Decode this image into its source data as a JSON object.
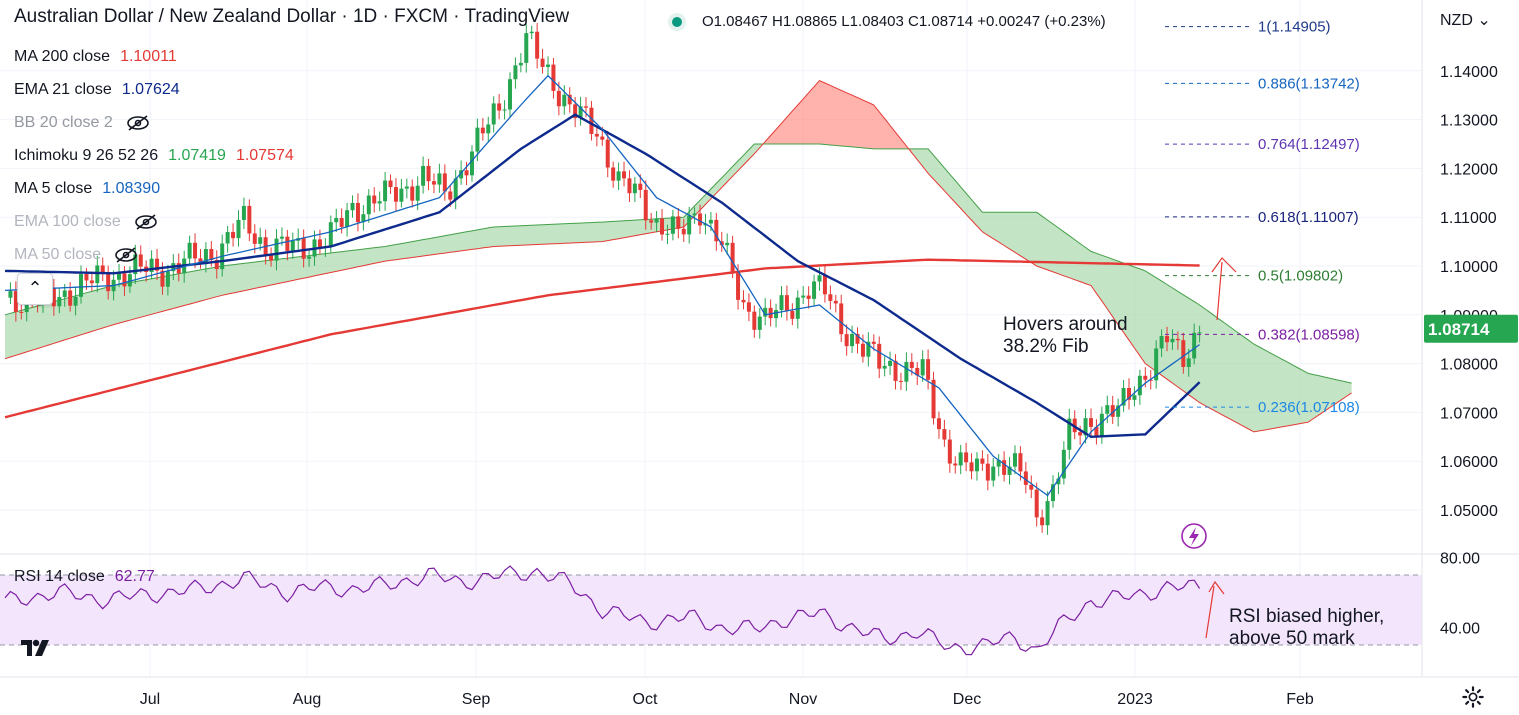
{
  "header": {
    "title": "Australian Dollar / New Zealand Dollar · 1D · FXCM · TradingView",
    "ohlc": "O1.08467  H1.08865  L1.08403  C1.08714  +0.00247  (+0.23%)",
    "currency": "NZD"
  },
  "indicators": {
    "ma200": {
      "label": "MA 200 close",
      "value": "1.10011",
      "color": "#e53935"
    },
    "ema21": {
      "label": "EMA 21 close",
      "value": "1.07624",
      "color": "#0d2a8c"
    },
    "bb": {
      "label": "BB 20 close 2"
    },
    "ichimoku": {
      "label": "Ichimoku 9 26 52 26",
      "value1": "1.07419",
      "value2": "1.07574"
    },
    "ma5": {
      "label": "MA 5 close",
      "value": "1.08390",
      "color": "#1565c0"
    },
    "ema100": {
      "label": "EMA 100 close"
    },
    "ma50": {
      "label": "MA 50 close"
    },
    "rsi": {
      "label": "RSI 14 close",
      "value": "62.77",
      "color": "#7b1fa2"
    }
  },
  "colors": {
    "up": "#26a650",
    "down": "#e53935",
    "ma200": "#e53935",
    "ema21": "#0d2a8c",
    "ma5": "#1565c0",
    "cloud_bull": "#a5d6a7",
    "cloud_bear": "#ff8a80",
    "rsi": "#7b1fa2",
    "rsi_band": "#f3e5fc"
  },
  "annotations": {
    "fib_note": "Hovers around\n38.2% Fib",
    "rsi_note": "RSI biased higher,\nabove 50 mark"
  },
  "chart_data": {
    "type": "candlestick",
    "title": "Australian Dollar / New Zealand Dollar · 1D · FXCM · TradingView",
    "price_axis": {
      "ticks": [
        1.05,
        1.06,
        1.07,
        1.08,
        1.09,
        1.1,
        1.11,
        1.12,
        1.13,
        1.14
      ],
      "last_price": "1.08714"
    },
    "rsi_axis": {
      "ticks": [
        "80.00",
        "40.00"
      ],
      "band": [
        30,
        70
      ]
    },
    "x_axis": {
      "ticks": [
        "Jul",
        "Aug",
        "Sep",
        "Oct",
        "Nov",
        "Dec",
        "2023",
        "Feb"
      ]
    },
    "fib_levels": [
      {
        "label": "1(1.14905)",
        "value": 1.14905,
        "color": "#1e3a8a"
      },
      {
        "label": "0.886(1.13742)",
        "value": 1.13742,
        "color": "#1565c0"
      },
      {
        "label": "0.764(1.12497)",
        "value": 1.12497,
        "color": "#5e35b1"
      },
      {
        "label": "0.618(1.11007)",
        "value": 1.11007,
        "color": "#1a237e"
      },
      {
        "label": "0.5(1.09802)",
        "value": 1.09802,
        "color": "#2e7d32"
      },
      {
        "label": "0.382(1.08598)",
        "value": 1.08598,
        "color": "#7b1fa2"
      },
      {
        "label": "0.236(1.07108)",
        "value": 1.07108,
        "color": "#1e88e5"
      }
    ],
    "close_anchors": [
      [
        0,
        1.0935
      ],
      [
        8,
        1.093
      ],
      [
        14,
        1.096
      ],
      [
        18,
        1.0975
      ],
      [
        24,
        1.099
      ],
      [
        30,
        1.0995
      ],
      [
        34,
        1.101
      ],
      [
        39,
        1.103
      ],
      [
        44,
        1.109
      ],
      [
        48,
        1.104
      ],
      [
        54,
        1.1035
      ],
      [
        60,
        1.106
      ],
      [
        64,
        1.112
      ],
      [
        70,
        1.114
      ],
      [
        77,
        1.118
      ],
      [
        81,
        1.115
      ],
      [
        86,
        1.123
      ],
      [
        91,
        1.133
      ],
      [
        96,
        1.146
      ],
      [
        100,
        1.14
      ],
      [
        104,
        1.132
      ],
      [
        109,
        1.128
      ],
      [
        113,
        1.117
      ],
      [
        117,
        1.114
      ],
      [
        120,
        1.109
      ],
      [
        124,
        1.106
      ],
      [
        128,
        1.112
      ],
      [
        132,
        1.104
      ],
      [
        136,
        1.092
      ],
      [
        140,
        1.089
      ],
      [
        145,
        1.092
      ],
      [
        148,
        1.096
      ],
      [
        151,
        1.0945
      ],
      [
        154,
        1.088
      ],
      [
        158,
        1.083
      ],
      [
        161,
        1.08
      ],
      [
        165,
        1.079
      ],
      [
        169,
        1.078
      ],
      [
        173,
        1.064
      ],
      [
        176,
        1.059
      ],
      [
        179,
        1.058
      ],
      [
        182,
        1.06
      ],
      [
        185,
        1.059
      ],
      [
        188,
        1.056
      ],
      [
        190,
        1.049
      ],
      [
        193,
        1.054
      ],
      [
        196,
        1.065
      ],
      [
        199,
        1.068
      ],
      [
        202,
        1.069
      ],
      [
        205,
        1.07
      ],
      [
        208,
        1.076
      ],
      [
        211,
        1.079
      ],
      [
        214,
        1.085
      ],
      [
        217,
        1.082
      ],
      [
        220,
        1.0871
      ]
    ],
    "rsi_anchors": [
      [
        0,
        55
      ],
      [
        10,
        60
      ],
      [
        18,
        56
      ],
      [
        24,
        58
      ],
      [
        30,
        60
      ],
      [
        36,
        62
      ],
      [
        44,
        68
      ],
      [
        52,
        60
      ],
      [
        58,
        63
      ],
      [
        64,
        62
      ],
      [
        70,
        64
      ],
      [
        78,
        70
      ],
      [
        84,
        66
      ],
      [
        92,
        70
      ],
      [
        98,
        72
      ],
      [
        104,
        65
      ],
      [
        110,
        50
      ],
      [
        118,
        43
      ],
      [
        126,
        46
      ],
      [
        132,
        40
      ],
      [
        138,
        39
      ],
      [
        144,
        45
      ],
      [
        150,
        48
      ],
      [
        156,
        40
      ],
      [
        162,
        33
      ],
      [
        168,
        38
      ],
      [
        174,
        28
      ],
      [
        180,
        30
      ],
      [
        186,
        34
      ],
      [
        190,
        27
      ],
      [
        194,
        40
      ],
      [
        200,
        55
      ],
      [
        208,
        58
      ],
      [
        214,
        63
      ],
      [
        220,
        62.77
      ]
    ],
    "ma200_anchors": [
      [
        0,
        1.069
      ],
      [
        60,
        1.086
      ],
      [
        100,
        1.094
      ],
      [
        140,
        1.0995
      ],
      [
        170,
        1.1013
      ],
      [
        220,
        1.1001
      ]
    ],
    "ema21_anchors": [
      [
        0,
        1.099
      ],
      [
        20,
        1.0985
      ],
      [
        40,
        1.101
      ],
      [
        60,
        1.104
      ],
      [
        80,
        1.111
      ],
      [
        95,
        1.124
      ],
      [
        105,
        1.131
      ],
      [
        118,
        1.123
      ],
      [
        132,
        1.113
      ],
      [
        146,
        1.101
      ],
      [
        160,
        1.093
      ],
      [
        176,
        1.081
      ],
      [
        190,
        1.072
      ],
      [
        200,
        1.065
      ],
      [
        210,
        1.0655
      ],
      [
        220,
        1.0762
      ]
    ],
    "ma5_anchors": [
      [
        0,
        1.095
      ],
      [
        20,
        1.096
      ],
      [
        40,
        1.102
      ],
      [
        60,
        1.107
      ],
      [
        80,
        1.114
      ],
      [
        95,
        1.133
      ],
      [
        100,
        1.139
      ],
      [
        110,
        1.128
      ],
      [
        120,
        1.114
      ],
      [
        130,
        1.108
      ],
      [
        140,
        1.09
      ],
      [
        150,
        1.092
      ],
      [
        160,
        1.083
      ],
      [
        172,
        1.075
      ],
      [
        182,
        1.061
      ],
      [
        192,
        1.053
      ],
      [
        200,
        1.066
      ],
      [
        210,
        1.076
      ],
      [
        220,
        1.0839
      ]
    ],
    "cloud_upper_anchors": [
      [
        0,
        1.09
      ],
      [
        20,
        1.096
      ],
      [
        40,
        1.1
      ],
      [
        70,
        1.104
      ],
      [
        90,
        1.108
      ],
      [
        110,
        1.109
      ],
      [
        125,
        1.11
      ],
      [
        138,
        1.125
      ],
      [
        150,
        1.125
      ],
      [
        160,
        1.124
      ],
      [
        170,
        1.124
      ],
      [
        180,
        1.111
      ],
      [
        190,
        1.111
      ],
      [
        200,
        1.103
      ],
      [
        210,
        1.099
      ],
      [
        220,
        1.092
      ],
      [
        230,
        1.084
      ],
      [
        240,
        1.078
      ],
      [
        248,
        1.076
      ]
    ],
    "cloud_lower_anchors": [
      [
        0,
        1.081
      ],
      [
        20,
        1.088
      ],
      [
        40,
        1.094
      ],
      [
        70,
        1.101
      ],
      [
        90,
        1.104
      ],
      [
        110,
        1.105
      ],
      [
        125,
        1.108
      ],
      [
        138,
        1.123
      ],
      [
        150,
        1.138
      ],
      [
        160,
        1.133
      ],
      [
        170,
        1.119
      ],
      [
        180,
        1.107
      ],
      [
        190,
        1.1
      ],
      [
        200,
        1.096
      ],
      [
        210,
        1.08
      ],
      [
        220,
        1.072
      ],
      [
        230,
        1.066
      ],
      [
        240,
        1.068
      ],
      [
        248,
        1.074
      ]
    ]
  }
}
